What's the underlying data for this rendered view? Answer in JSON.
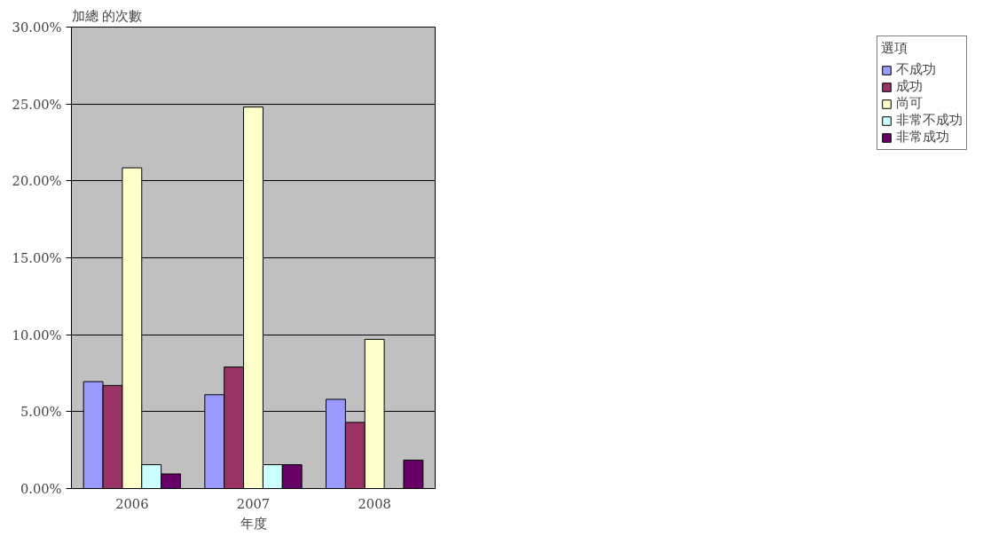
{
  "chart_data": {
    "type": "bar",
    "xlabel": "年度",
    "ylabel": "加總 的次數",
    "legend_title": "選項",
    "categories": [
      "2006",
      "2007",
      "2008"
    ],
    "series": [
      {
        "name": "不成功",
        "color": "#9999ff",
        "values": [
          6.95,
          6.1,
          5.8
        ]
      },
      {
        "name": "成功",
        "color": "#993366",
        "values": [
          6.7,
          7.9,
          4.3
        ]
      },
      {
        "name": "尚可",
        "color": "#ffffcc",
        "values": [
          20.85,
          24.8,
          9.7
        ]
      },
      {
        "name": "非常不成功",
        "color": "#ccffff",
        "values": [
          1.55,
          1.55,
          null
        ]
      },
      {
        "name": "非常成功",
        "color": "#660066",
        "values": [
          0.95,
          1.55,
          1.85
        ]
      }
    ],
    "ylim": [
      0,
      30
    ],
    "yticks": [
      {
        "value": 0,
        "label": "0.00%"
      },
      {
        "value": 5,
        "label": "5.00%"
      },
      {
        "value": 10,
        "label": "10.00%"
      },
      {
        "value": 15,
        "label": "15.00%"
      },
      {
        "value": 20,
        "label": "20.00%"
      },
      {
        "value": 25,
        "label": "25.00%"
      },
      {
        "value": 30,
        "label": "30.00%"
      }
    ],
    "grid": "y",
    "legend": "right"
  }
}
